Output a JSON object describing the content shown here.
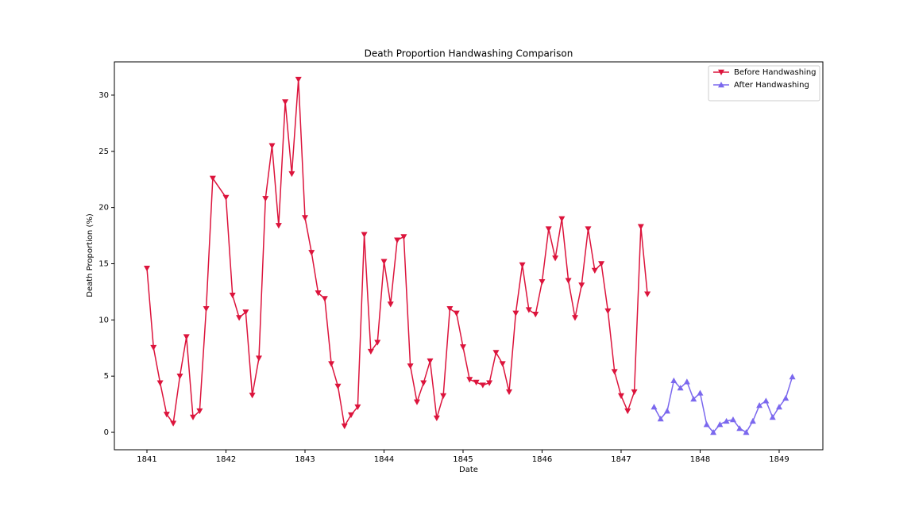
{
  "chart_data": {
    "type": "line",
    "title": "Death Proportion Handwashing Comparison",
    "x_label": "Date",
    "y_label": "Death Proportion (%)",
    "xlim": [
      1840.588,
      1849.553
    ],
    "xticks": [
      1841,
      1842,
      1843,
      1844,
      1845,
      1846,
      1847,
      1848,
      1849
    ],
    "ylim": [
      -1.55,
      32.96
    ],
    "yticks": [
      0,
      5,
      10,
      15,
      20,
      25,
      30
    ],
    "grid": false,
    "legend": "upper right",
    "series": [
      {
        "name": "Before Handwashing",
        "color": "#dc143c",
        "marker": "triangle-down",
        "x": [
          1841.0,
          1841.083,
          1841.167,
          1841.25,
          1841.333,
          1841.417,
          1841.5,
          1841.583,
          1841.667,
          1841.75,
          1841.833,
          1842.0,
          1842.083,
          1842.167,
          1842.25,
          1842.333,
          1842.417,
          1842.5,
          1842.583,
          1842.667,
          1842.75,
          1842.833,
          1842.917,
          1843.0,
          1843.083,
          1843.167,
          1843.25,
          1843.333,
          1843.417,
          1843.5,
          1843.583,
          1843.667,
          1843.75,
          1843.833,
          1843.917,
          1844.0,
          1844.083,
          1844.167,
          1844.25,
          1844.333,
          1844.417,
          1844.5,
          1844.583,
          1844.667,
          1844.75,
          1844.833,
          1844.917,
          1845.0,
          1845.083,
          1845.167,
          1845.25,
          1845.333,
          1845.417,
          1845.5,
          1845.583,
          1845.667,
          1845.75,
          1845.833,
          1845.917,
          1846.0,
          1846.083,
          1846.167,
          1846.25,
          1846.333,
          1846.417,
          1846.5,
          1846.583,
          1846.667,
          1846.75,
          1846.833,
          1846.917,
          1847.0,
          1847.083,
          1847.167,
          1847.25,
          1847.333
        ],
        "values": [
          14.6,
          7.55,
          4.4,
          1.6,
          0.8,
          5.0,
          8.5,
          1.35,
          1.9,
          11.0,
          22.6,
          20.9,
          12.2,
          10.2,
          10.7,
          3.3,
          6.6,
          20.8,
          25.5,
          18.4,
          29.4,
          23.0,
          31.4,
          19.1,
          16.0,
          12.4,
          11.9,
          6.1,
          4.1,
          0.56,
          1.55,
          2.26,
          17.6,
          7.2,
          8.0,
          15.2,
          11.4,
          17.1,
          17.4,
          5.9,
          2.7,
          4.4,
          6.35,
          1.27,
          3.25,
          11.0,
          10.6,
          7.6,
          4.7,
          4.45,
          4.2,
          4.4,
          7.1,
          6.1,
          3.6,
          10.6,
          14.9,
          10.9,
          10.5,
          13.4,
          18.1,
          15.5,
          19.0,
          13.5,
          10.2,
          13.1,
          18.1,
          14.4,
          15.0,
          10.8,
          5.4,
          3.25,
          1.9,
          3.6,
          18.3,
          12.3
        ]
      },
      {
        "name": "After Handwashing",
        "color": "#7b68ee",
        "marker": "triangle-up",
        "x": [
          1847.417,
          1847.5,
          1847.583,
          1847.667,
          1847.75,
          1847.833,
          1847.917,
          1848.0,
          1848.083,
          1848.167,
          1848.25,
          1848.333,
          1848.417,
          1848.5,
          1848.583,
          1848.667,
          1848.75,
          1848.833,
          1848.917,
          1849.0,
          1849.083,
          1849.167
        ],
        "values": [
          2.26,
          1.2,
          1.9,
          4.6,
          3.95,
          4.5,
          2.96,
          3.5,
          0.7,
          0.0,
          0.7,
          1.0,
          1.13,
          0.35,
          0.0,
          1.0,
          2.4,
          2.8,
          1.34,
          2.26,
          3.04,
          4.94
        ]
      }
    ]
  }
}
